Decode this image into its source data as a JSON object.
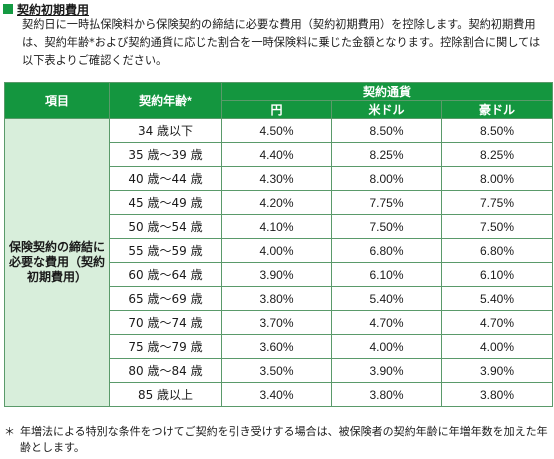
{
  "heading": "契約初期費用",
  "intro": "契約日に一時払保険料から保険契約の締結に必要な費用（契約初期費用）を控除します。契約初期費用は、契約年齢*および契約通貨に応じた割合を一時保険料に乗じた金額となります。控除割合に関しては以下表よりご確認ください。",
  "table": {
    "header_item": "項目",
    "header_age": "契約年齢*",
    "header_currency": "契約通貨",
    "currencies": [
      "円",
      "米ドル",
      "豪ドル"
    ],
    "row_label": "保険契約の締結に必要な費用（契約初期費用）",
    "rows": [
      {
        "age": "34 歳以下",
        "jpy": "4.50%",
        "usd": "8.50%",
        "aud": "8.50%"
      },
      {
        "age": "35 歳～39 歳",
        "jpy": "4.40%",
        "usd": "8.25%",
        "aud": "8.25%"
      },
      {
        "age": "40 歳～44 歳",
        "jpy": "4.30%",
        "usd": "8.00%",
        "aud": "8.00%"
      },
      {
        "age": "45 歳～49 歳",
        "jpy": "4.20%",
        "usd": "7.75%",
        "aud": "7.75%"
      },
      {
        "age": "50 歳～54 歳",
        "jpy": "4.10%",
        "usd": "7.50%",
        "aud": "7.50%"
      },
      {
        "age": "55 歳～59 歳",
        "jpy": "4.00%",
        "usd": "6.80%",
        "aud": "6.80%"
      },
      {
        "age": "60 歳～64 歳",
        "jpy": "3.90%",
        "usd": "6.10%",
        "aud": "6.10%"
      },
      {
        "age": "65 歳～69 歳",
        "jpy": "3.80%",
        "usd": "5.40%",
        "aud": "5.40%"
      },
      {
        "age": "70 歳～74 歳",
        "jpy": "3.70%",
        "usd": "4.70%",
        "aud": "4.70%"
      },
      {
        "age": "75 歳～79 歳",
        "jpy": "3.60%",
        "usd": "4.00%",
        "aud": "4.00%"
      },
      {
        "age": "80 歳～84 歳",
        "jpy": "3.50%",
        "usd": "3.90%",
        "aud": "3.90%"
      },
      {
        "age": "85 歳以上",
        "jpy": "3.40%",
        "usd": "3.80%",
        "aud": "3.80%"
      }
    ]
  },
  "footnote": {
    "mark": "＊",
    "text": "年増法による特別な条件をつけてご契約を引き受けする場合は、被保険者の契約年齢に年増年数を加えた年齢とします。"
  },
  "colors": {
    "header_green": "#14963f",
    "label_mint": "#d8eedb",
    "bullet_green": "#159a43"
  }
}
